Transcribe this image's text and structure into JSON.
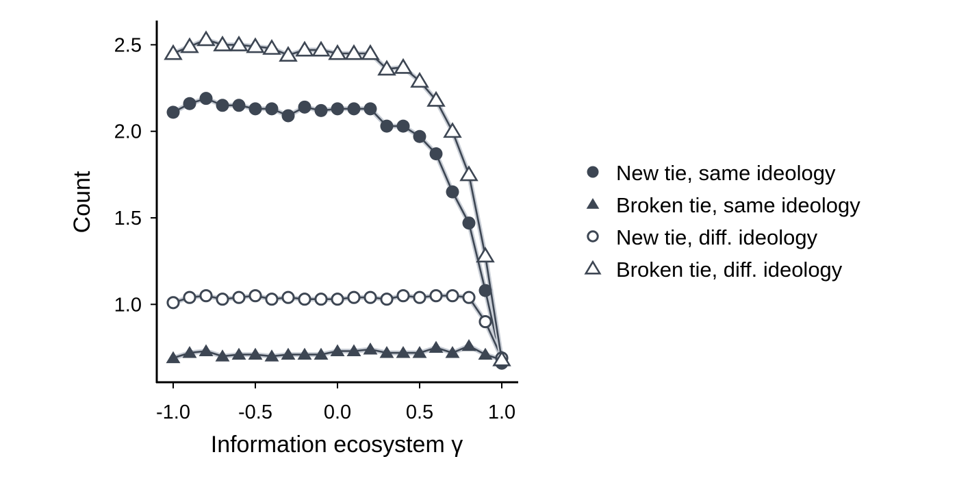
{
  "chart_data": {
    "type": "line",
    "title": "",
    "xlabel": "Information ecosystem γ",
    "ylabel": "Count",
    "xlim": [
      -1.1,
      1.1
    ],
    "ylim": [
      0.55,
      2.64
    ],
    "xticks": [
      -1.0,
      -0.5,
      0.0,
      0.5,
      1.0
    ],
    "xtick_labels": [
      "-1.0",
      "-0.5",
      "0.0",
      "0.5",
      "1.0"
    ],
    "yticks": [
      1.0,
      1.5,
      2.0,
      2.5
    ],
    "ytick_labels": [
      "1.0",
      "1.5",
      "2.0",
      "2.5"
    ],
    "grid": false,
    "legend_position": "right",
    "color": "#3d4653",
    "x": [
      -1.0,
      -0.9,
      -0.8,
      -0.7,
      -0.6,
      -0.5,
      -0.4,
      -0.3,
      -0.2,
      -0.1,
      0.0,
      0.1,
      0.2,
      0.3,
      0.4,
      0.5,
      0.6,
      0.7,
      0.8,
      0.9,
      1.0
    ],
    "series": [
      {
        "name": "New tie, same ideology",
        "marker": "circle-filled",
        "values": [
          2.11,
          2.16,
          2.19,
          2.15,
          2.15,
          2.13,
          2.13,
          2.09,
          2.14,
          2.12,
          2.13,
          2.13,
          2.13,
          2.03,
          2.03,
          1.97,
          1.87,
          1.65,
          1.47,
          1.08,
          0.66
        ]
      },
      {
        "name": "Broken tie, same ideology",
        "marker": "triangle-filled",
        "values": [
          0.69,
          0.72,
          0.73,
          0.7,
          0.71,
          0.71,
          0.7,
          0.71,
          0.71,
          0.71,
          0.73,
          0.73,
          0.74,
          0.72,
          0.72,
          0.72,
          0.75,
          0.72,
          0.76,
          0.71,
          0.68
        ]
      },
      {
        "name": "New tie, diff. ideology",
        "marker": "circle-open",
        "values": [
          1.01,
          1.04,
          1.05,
          1.03,
          1.04,
          1.05,
          1.03,
          1.04,
          1.03,
          1.03,
          1.03,
          1.04,
          1.04,
          1.03,
          1.05,
          1.04,
          1.05,
          1.05,
          1.04,
          0.9,
          0.69
        ]
      },
      {
        "name": "Broken tie, diff. ideology",
        "marker": "triangle-open",
        "values": [
          2.45,
          2.49,
          2.53,
          2.5,
          2.5,
          2.49,
          2.48,
          2.44,
          2.47,
          2.47,
          2.45,
          2.45,
          2.45,
          2.36,
          2.37,
          2.29,
          2.18,
          2.0,
          1.75,
          1.28,
          0.68
        ]
      }
    ]
  }
}
